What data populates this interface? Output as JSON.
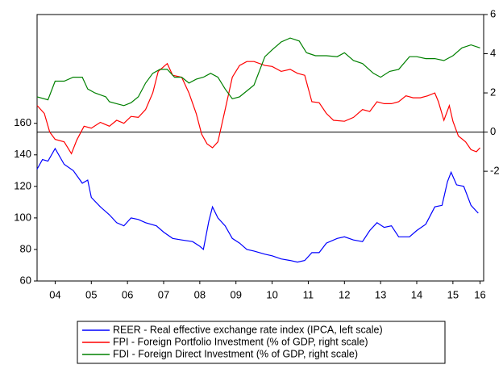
{
  "chart_data": {
    "type": "line",
    "xlim": [
      2004,
      2016.35
    ],
    "xticks": [
      {
        "value": 2004.5,
        "label": "04"
      },
      {
        "value": 2005.5,
        "label": "05"
      },
      {
        "value": 2006.5,
        "label": "06"
      },
      {
        "value": 2007.5,
        "label": "07"
      },
      {
        "value": 2008.5,
        "label": "08"
      },
      {
        "value": 2009.5,
        "label": "09"
      },
      {
        "value": 2010.5,
        "label": "10"
      },
      {
        "value": 2011.5,
        "label": "11"
      },
      {
        "value": 2012.5,
        "label": "12"
      },
      {
        "value": 2013.5,
        "label": "13"
      },
      {
        "value": 2014.5,
        "label": "14"
      },
      {
        "value": 2015.5,
        "label": "15"
      },
      {
        "value": 2016.25,
        "label": "16"
      }
    ],
    "ylim": [
      60,
      229
    ],
    "yticks": [
      60,
      80,
      100,
      120,
      140,
      160
    ],
    "y2lim": [
      -7.6,
      6
    ],
    "y2ticks": [
      -2,
      0,
      2,
      4,
      6
    ],
    "y2_zero_line": true,
    "series": [
      {
        "name": "REER - Real effective exchange rate index (IPCA, left scale)",
        "color": "#0000ff",
        "axis": "y",
        "x": [
          2004.0,
          2004.15,
          2004.3,
          2004.5,
          2004.75,
          2005.0,
          2005.25,
          2005.4,
          2005.5,
          2005.75,
          2006.0,
          2006.2,
          2006.4,
          2006.6,
          2006.8,
          2007.0,
          2007.3,
          2007.5,
          2007.75,
          2008.0,
          2008.3,
          2008.5,
          2008.6,
          2008.75,
          2008.85,
          2009.0,
          2009.2,
          2009.4,
          2009.6,
          2009.8,
          2010.0,
          2010.3,
          2010.5,
          2010.75,
          2011.0,
          2011.2,
          2011.4,
          2011.6,
          2011.8,
          2012.0,
          2012.3,
          2012.5,
          2012.75,
          2013.0,
          2013.2,
          2013.4,
          2013.6,
          2013.8,
          2014.0,
          2014.3,
          2014.5,
          2014.75,
          2015.0,
          2015.2,
          2015.35,
          2015.45,
          2015.6,
          2015.8,
          2016.0,
          2016.2
        ],
        "values": [
          131,
          137,
          136,
          144,
          134,
          130,
          122,
          124,
          113,
          107,
          102,
          97,
          95,
          100,
          99,
          97,
          95,
          91,
          87,
          86,
          85,
          82,
          80,
          98,
          107,
          100,
          95,
          87,
          84,
          80,
          79,
          77,
          76,
          74,
          73,
          72,
          73,
          78,
          78,
          84,
          87,
          88,
          86,
          85,
          92,
          97,
          94,
          95,
          88,
          88,
          92,
          96,
          107,
          108,
          123,
          129,
          121,
          120,
          108,
          103
        ]
      },
      {
        "name": "FPI - Foreign Portfolio Investment (% of GDP, right scale)",
        "color": "#ff0000",
        "axis": "y2",
        "x": [
          2004.0,
          2004.2,
          2004.35,
          2004.5,
          2004.75,
          2004.95,
          2005.1,
          2005.3,
          2005.5,
          2005.75,
          2006.0,
          2006.2,
          2006.4,
          2006.6,
          2006.8,
          2007.0,
          2007.2,
          2007.35,
          2007.6,
          2007.75,
          2008.0,
          2008.2,
          2008.4,
          2008.55,
          2008.7,
          2008.85,
          2009.0,
          2009.2,
          2009.4,
          2009.6,
          2009.8,
          2010.0,
          2010.3,
          2010.5,
          2010.75,
          2011.0,
          2011.2,
          2011.4,
          2011.6,
          2011.8,
          2012.0,
          2012.2,
          2012.5,
          2012.75,
          2013.0,
          2013.2,
          2013.4,
          2013.6,
          2013.8,
          2014.0,
          2014.2,
          2014.4,
          2014.6,
          2014.8,
          2015.0,
          2015.1,
          2015.25,
          2015.4,
          2015.5,
          2015.65,
          2015.85,
          2016.0,
          2016.15,
          2016.25
        ],
        "values": [
          1.36,
          0.95,
          0,
          -0.37,
          -0.5,
          -1.1,
          -0.4,
          0.3,
          0.2,
          0.5,
          0.3,
          0.6,
          0.45,
          0.8,
          0.75,
          1.15,
          2.0,
          3.1,
          3.5,
          2.9,
          2.8,
          2.0,
          0.95,
          -0.1,
          -0.6,
          -0.8,
          -0.5,
          1.15,
          2.8,
          3.4,
          3.6,
          3.6,
          3.4,
          3.35,
          3.1,
          3.2,
          3.0,
          2.9,
          1.55,
          1.5,
          0.95,
          0.6,
          0.55,
          0.75,
          1.15,
          1.05,
          1.55,
          1.45,
          1.45,
          1.55,
          1.85,
          1.75,
          1.75,
          1.85,
          2.0,
          1.55,
          0.6,
          1.35,
          0.55,
          -0.2,
          -0.5,
          -0.9,
          -1.0,
          -0.8
        ]
      },
      {
        "name": "FDI - Foreign Direct Investment (% of GDP, right scale)",
        "color": "#008000",
        "axis": "y2",
        "x": [
          2004.0,
          2004.3,
          2004.5,
          2004.75,
          2005.0,
          2005.25,
          2005.4,
          2005.6,
          2005.9,
          2006.0,
          2006.2,
          2006.4,
          2006.6,
          2006.8,
          2007.0,
          2007.2,
          2007.4,
          2007.6,
          2007.8,
          2008.0,
          2008.2,
          2008.4,
          2008.6,
          2008.8,
          2009.0,
          2009.2,
          2009.4,
          2009.6,
          2009.8,
          2010.0,
          2010.3,
          2010.5,
          2010.75,
          2011.0,
          2011.25,
          2011.45,
          2011.7,
          2012.0,
          2012.3,
          2012.5,
          2012.75,
          2013.0,
          2013.3,
          2013.5,
          2013.75,
          2014.0,
          2014.3,
          2014.5,
          2014.75,
          2015.0,
          2015.25,
          2015.5,
          2015.75,
          2016.0,
          2016.25
        ],
        "values": [
          1.8,
          1.65,
          2.6,
          2.6,
          2.8,
          2.8,
          2.2,
          2.0,
          1.8,
          1.55,
          1.45,
          1.35,
          1.5,
          1.8,
          2.5,
          3.0,
          3.2,
          3.2,
          2.8,
          2.8,
          2.5,
          2.7,
          2.8,
          3.0,
          2.8,
          2.2,
          1.7,
          1.8,
          2.1,
          2.4,
          3.85,
          4.2,
          4.6,
          4.8,
          4.65,
          4.05,
          3.9,
          3.9,
          3.85,
          4.05,
          3.65,
          3.5,
          3.0,
          2.8,
          3.1,
          3.2,
          3.85,
          3.85,
          3.75,
          3.75,
          3.65,
          3.9,
          4.3,
          4.45,
          4.3
        ]
      }
    ]
  }
}
